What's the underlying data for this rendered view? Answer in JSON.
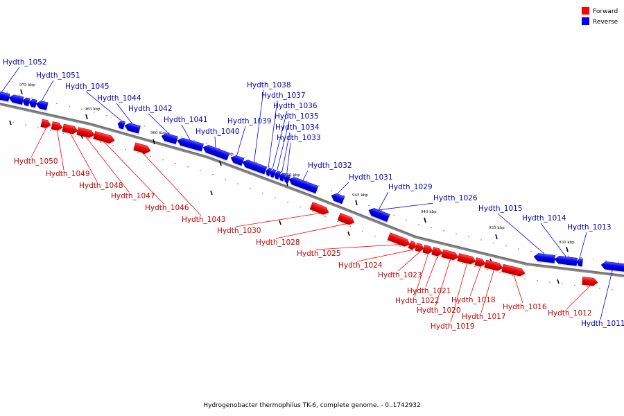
{
  "legend": {
    "forward": {
      "label": "Forward",
      "color": "#ff0000"
    },
    "reverse": {
      "label": "Reverse",
      "color": "#0000ff"
    }
  },
  "caption": "Hydrogenobacter thermophilus TK-6, complete genome. - 0..1742932",
  "ticks": [
    "975 kbp",
    "970 kbp",
    "965 kbp",
    "960 kbp",
    "955 kbp",
    "950 kbp",
    "945 kbp",
    "940 kbp",
    "935 kbp",
    "930 kbp"
  ],
  "genes": [
    {
      "name": "Hydth_1052",
      "strand": "reverse"
    },
    {
      "name": "Hydth_1051",
      "strand": "reverse"
    },
    {
      "name": "Hydth_1050",
      "strand": "forward"
    },
    {
      "name": "Hydth_1049",
      "strand": "forward"
    },
    {
      "name": "Hydth_1048",
      "strand": "forward"
    },
    {
      "name": "Hydth_1047",
      "strand": "forward"
    },
    {
      "name": "Hydth_1046",
      "strand": "forward"
    },
    {
      "name": "Hydth_1045",
      "strand": "reverse"
    },
    {
      "name": "Hydth_1044",
      "strand": "reverse"
    },
    {
      "name": "Hydth_1043",
      "strand": "forward"
    },
    {
      "name": "Hydth_1042",
      "strand": "reverse"
    },
    {
      "name": "Hydth_1041",
      "strand": "reverse"
    },
    {
      "name": "Hydth_1040",
      "strand": "reverse"
    },
    {
      "name": "Hydth_1039",
      "strand": "reverse"
    },
    {
      "name": "Hydth_1038",
      "strand": "reverse"
    },
    {
      "name": "Hydth_1037",
      "strand": "reverse"
    },
    {
      "name": "Hydth_1036",
      "strand": "reverse"
    },
    {
      "name": "Hydth_1035",
      "strand": "reverse"
    },
    {
      "name": "Hydth_1034",
      "strand": "reverse"
    },
    {
      "name": "Hydth_1033",
      "strand": "reverse"
    },
    {
      "name": "Hydth_1032",
      "strand": "reverse"
    },
    {
      "name": "Hydth_1031",
      "strand": "reverse"
    },
    {
      "name": "Hydth_1030",
      "strand": "forward"
    },
    {
      "name": "Hydth_1029",
      "strand": "reverse"
    },
    {
      "name": "Hydth_1028",
      "strand": "forward"
    },
    {
      "name": "Hydth_1026",
      "strand": "reverse"
    },
    {
      "name": "Hydth_1025",
      "strand": "forward"
    },
    {
      "name": "Hydth_1024",
      "strand": "forward"
    },
    {
      "name": "Hydth_1023",
      "strand": "forward"
    },
    {
      "name": "Hydth_1022",
      "strand": "forward"
    },
    {
      "name": "Hydth_1021",
      "strand": "forward"
    },
    {
      "name": "Hydth_1020",
      "strand": "forward"
    },
    {
      "name": "Hydth_1019",
      "strand": "forward"
    },
    {
      "name": "Hydth_1018",
      "strand": "forward"
    },
    {
      "name": "Hydth_1017",
      "strand": "forward"
    },
    {
      "name": "Hydth_1016",
      "strand": "forward"
    },
    {
      "name": "Hydth_1015",
      "strand": "reverse"
    },
    {
      "name": "Hydth_1014",
      "strand": "reverse"
    },
    {
      "name": "Hydth_1013",
      "strand": "reverse"
    },
    {
      "name": "Hydth_1012",
      "strand": "forward"
    },
    {
      "name": "Hydth_1011",
      "strand": "reverse"
    }
  ]
}
